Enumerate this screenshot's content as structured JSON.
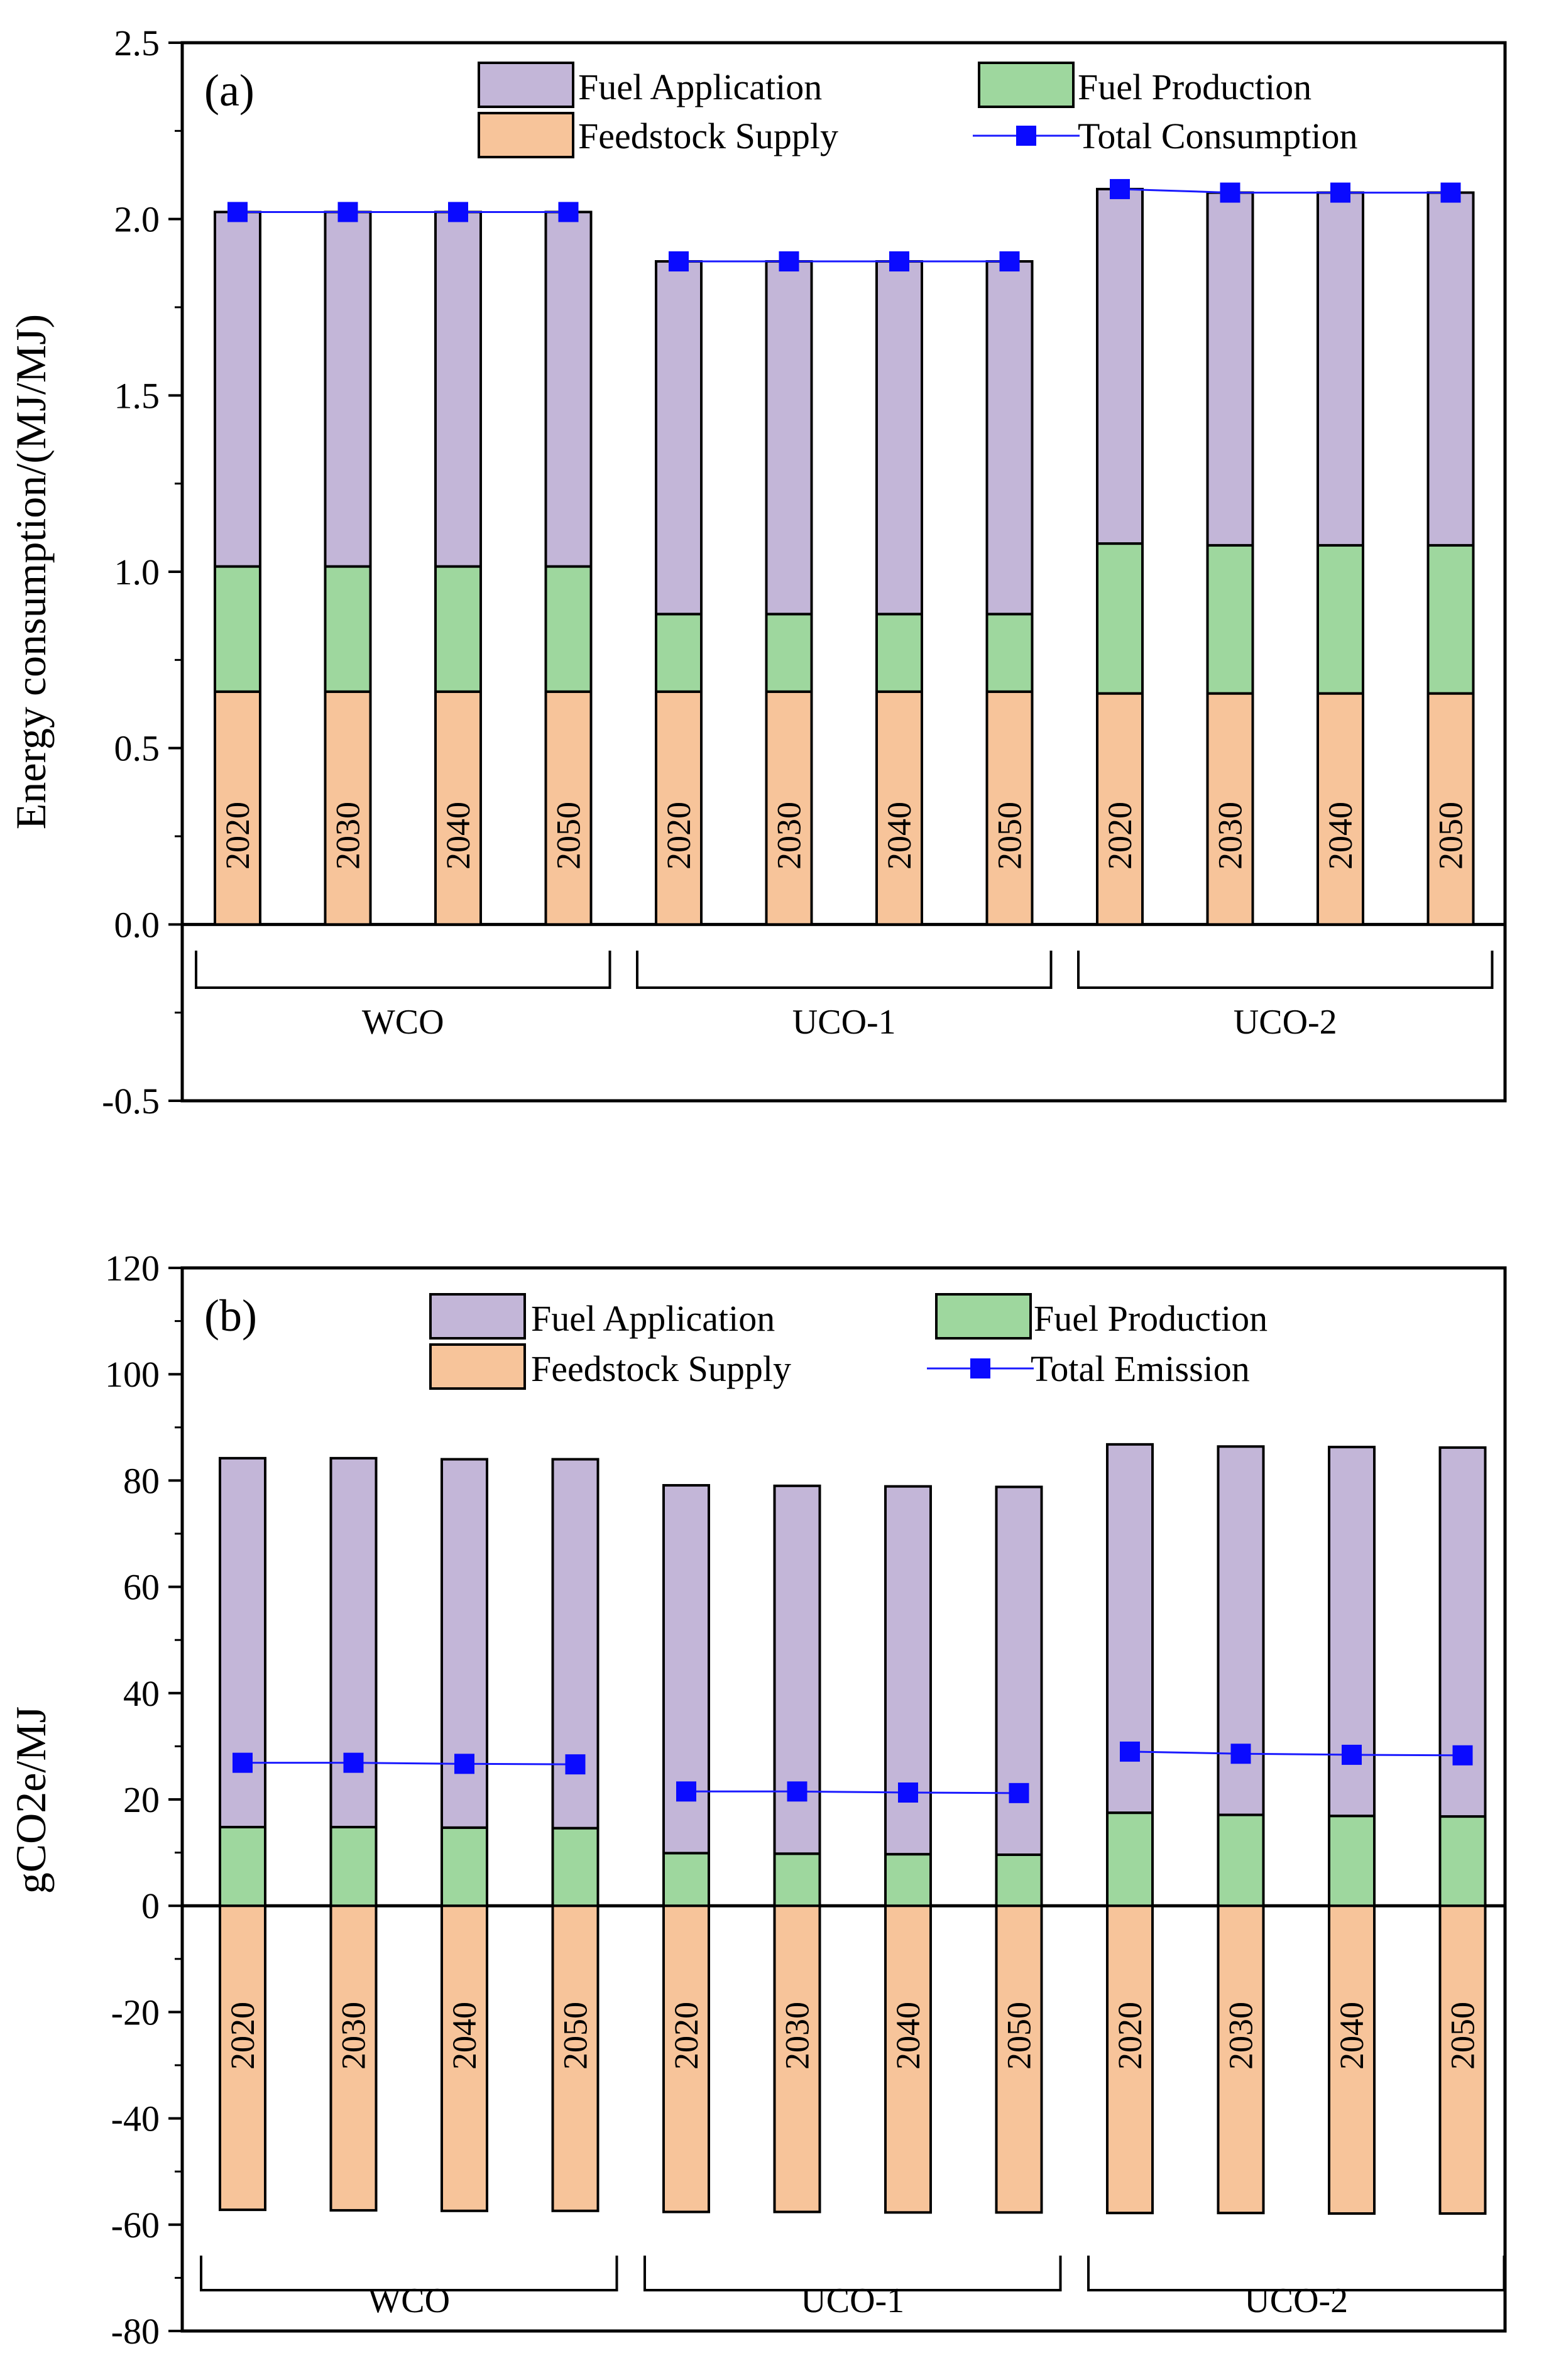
{
  "colors": {
    "fuel_application": "#c3b6d8",
    "fuel_production": "#9ed79e",
    "feedstock_supply": "#f7c49a",
    "total_line": "#1a1aff",
    "total_marker": "#0a0aff",
    "axis": "#000000"
  },
  "chart_data": [
    {
      "type": "bar",
      "stacked": true,
      "panel_label": "(a)",
      "ylabel": "Energy consumption/(MJ/MJ)",
      "xlabel": "",
      "ylim": [
        -0.5,
        2.5
      ],
      "yticks": [
        -0.5,
        0.0,
        0.5,
        1.0,
        1.5,
        2.0,
        2.5
      ],
      "ytick_labels": [
        "-0.5",
        "0.0",
        "0.5",
        "1.0",
        "1.5",
        "2.0",
        "2.5"
      ],
      "groups": [
        "WCO",
        "UCO-1",
        "UCO-2"
      ],
      "categories": [
        "2020",
        "2030",
        "2040",
        "2050",
        "2020",
        "2030",
        "2040",
        "2050",
        "2020",
        "2030",
        "2040",
        "2050"
      ],
      "legend": [
        "Fuel Application",
        "Fuel Production",
        "Feedstock Supply",
        "Total Consumption"
      ],
      "series": [
        {
          "name": "Feedstock Supply",
          "values": [
            0.66,
            0.66,
            0.66,
            0.66,
            0.66,
            0.66,
            0.66,
            0.66,
            0.655,
            0.655,
            0.655,
            0.655
          ]
        },
        {
          "name": "Fuel Production",
          "values": [
            0.355,
            0.355,
            0.355,
            0.355,
            0.22,
            0.22,
            0.22,
            0.22,
            0.425,
            0.42,
            0.42,
            0.42
          ]
        },
        {
          "name": "Fuel Application",
          "values": [
            1.005,
            1.005,
            1.005,
            1.005,
            1.0,
            1.0,
            1.0,
            1.0,
            1.005,
            1.0,
            1.0,
            1.0
          ]
        }
      ],
      "total_series": {
        "name": "Total Consumption",
        "values": [
          2.02,
          2.02,
          2.02,
          2.02,
          1.88,
          1.88,
          1.88,
          1.88,
          2.085,
          2.075,
          2.075,
          2.075
        ]
      }
    },
    {
      "type": "bar",
      "stacked": true,
      "panel_label": "(b)",
      "ylabel": "gCO2e/MJ",
      "xlabel": "",
      "ylim": [
        -80,
        120
      ],
      "yticks": [
        -80,
        -60,
        -40,
        -20,
        0,
        20,
        40,
        60,
        80,
        100,
        120
      ],
      "ytick_labels": [
        "-80",
        "-60",
        "-40",
        "-20",
        "0",
        "20",
        "40",
        "60",
        "80",
        "100",
        "120"
      ],
      "groups": [
        "WCO",
        "UCO-1",
        "UCO-2"
      ],
      "categories": [
        "2020",
        "2030",
        "2040",
        "2050",
        "2020",
        "2030",
        "2040",
        "2050",
        "2020",
        "2030",
        "2040",
        "2050"
      ],
      "legend": [
        "Fuel Application",
        "Fuel Production",
        "Feedstock Supply",
        "Total Emission"
      ],
      "series": [
        {
          "name": "Feedstock Supply",
          "values": [
            -57.2,
            -57.3,
            -57.4,
            -57.4,
            -57.6,
            -57.6,
            -57.7,
            -57.7,
            -57.8,
            -57.8,
            -57.9,
            -57.9
          ]
        },
        {
          "name": "Fuel Production",
          "values": [
            14.8,
            14.8,
            14.7,
            14.6,
            9.9,
            9.8,
            9.7,
            9.6,
            17.5,
            17.1,
            16.9,
            16.8
          ]
        },
        {
          "name": "Fuel Application",
          "values": [
            69.4,
            69.4,
            69.3,
            69.4,
            69.2,
            69.2,
            69.2,
            69.2,
            69.3,
            69.3,
            69.4,
            69.4
          ]
        }
      ],
      "total_series": {
        "name": "Total Emission",
        "values": [
          26.9,
          26.9,
          26.7,
          26.6,
          21.5,
          21.5,
          21.3,
          21.2,
          29.0,
          28.6,
          28.4,
          28.3
        ]
      }
    }
  ]
}
